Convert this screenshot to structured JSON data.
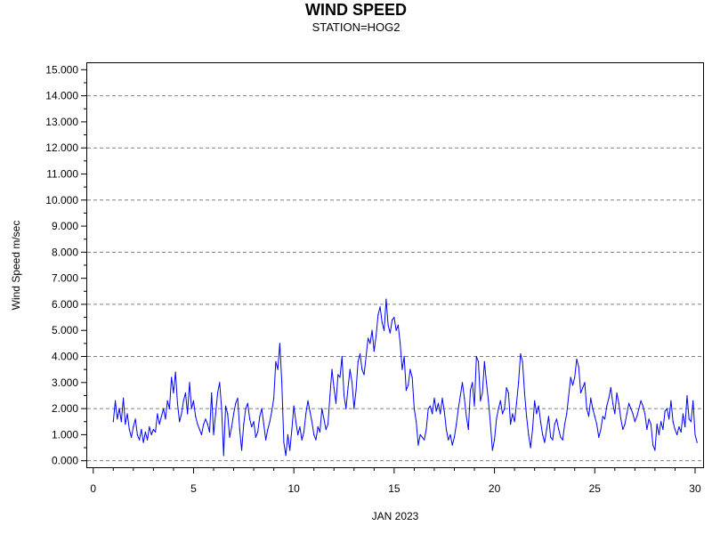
{
  "chart_data": {
    "type": "line",
    "title": "WIND SPEED",
    "subtitle": "STATION=HOG2",
    "xlabel": "JAN 2023",
    "ylabel": "Wind Speed m/sec",
    "xlim": [
      -0.3,
      30.4
    ],
    "ylim": [
      -0.25,
      15.25
    ],
    "x_ticks": [
      0,
      5,
      10,
      15,
      20,
      25,
      30
    ],
    "y_ticks": [
      "0.000",
      "1.000",
      "2.000",
      "3.000",
      "4.000",
      "5.000",
      "6.000",
      "7.000",
      "8.000",
      "9.000",
      "10.000",
      "11.000",
      "12.000",
      "13.000",
      "14.000",
      "15.000"
    ],
    "y_gridlines": [
      0,
      2,
      4,
      6,
      8,
      10,
      12,
      14
    ],
    "grid": "dashed horizontal at even values",
    "series": [
      {
        "color": "#0000ff",
        "points": [
          [
            1.0,
            1.5
          ],
          [
            1.1,
            2.3
          ],
          [
            1.2,
            1.6
          ],
          [
            1.3,
            2.0
          ],
          [
            1.4,
            1.5
          ],
          [
            1.5,
            2.4
          ],
          [
            1.6,
            1.4
          ],
          [
            1.7,
            1.8
          ],
          [
            1.8,
            1.2
          ],
          [
            1.9,
            0.9
          ],
          [
            2.0,
            1.3
          ],
          [
            2.1,
            1.6
          ],
          [
            2.2,
            1.0
          ],
          [
            2.3,
            0.8
          ],
          [
            2.4,
            1.2
          ],
          [
            2.5,
            0.7
          ],
          [
            2.6,
            1.1
          ],
          [
            2.7,
            0.8
          ],
          [
            2.8,
            1.3
          ],
          [
            2.9,
            1.0
          ],
          [
            3.0,
            1.2
          ],
          [
            3.1,
            1.1
          ],
          [
            3.2,
            1.8
          ],
          [
            3.3,
            1.4
          ],
          [
            3.4,
            1.7
          ],
          [
            3.5,
            2.0
          ],
          [
            3.6,
            1.6
          ],
          [
            3.7,
            2.3
          ],
          [
            3.8,
            2.0
          ],
          [
            3.9,
            3.2
          ],
          [
            4.0,
            2.6
          ],
          [
            4.1,
            3.4
          ],
          [
            4.2,
            2.2
          ],
          [
            4.3,
            1.5
          ],
          [
            4.4,
            1.8
          ],
          [
            4.5,
            2.3
          ],
          [
            4.6,
            2.6
          ],
          [
            4.7,
            1.8
          ],
          [
            4.8,
            3.0
          ],
          [
            4.9,
            2.0
          ],
          [
            5.0,
            2.3
          ],
          [
            5.1,
            1.7
          ],
          [
            5.2,
            1.4
          ],
          [
            5.3,
            1.2
          ],
          [
            5.4,
            1.0
          ],
          [
            5.5,
            1.4
          ],
          [
            5.6,
            1.6
          ],
          [
            5.7,
            1.4
          ],
          [
            5.8,
            1.1
          ],
          [
            5.9,
            2.6
          ],
          [
            6.0,
            1.0
          ],
          [
            6.1,
            1.8
          ],
          [
            6.2,
            2.6
          ],
          [
            6.3,
            3.0
          ],
          [
            6.4,
            2.0
          ],
          [
            6.5,
            0.2
          ],
          [
            6.6,
            2.1
          ],
          [
            6.7,
            1.8
          ],
          [
            6.8,
            0.9
          ],
          [
            6.9,
            1.3
          ],
          [
            7.0,
            1.8
          ],
          [
            7.1,
            2.2
          ],
          [
            7.2,
            2.4
          ],
          [
            7.3,
            1.2
          ],
          [
            7.4,
            0.4
          ],
          [
            7.5,
            1.4
          ],
          [
            7.6,
            2.0
          ],
          [
            7.7,
            2.2
          ],
          [
            7.8,
            1.6
          ],
          [
            7.9,
            1.3
          ],
          [
            8.0,
            1.5
          ],
          [
            8.1,
            0.9
          ],
          [
            8.2,
            1.1
          ],
          [
            8.3,
            1.7
          ],
          [
            8.4,
            2.0
          ],
          [
            8.5,
            1.4
          ],
          [
            8.6,
            0.8
          ],
          [
            8.7,
            1.2
          ],
          [
            8.8,
            1.5
          ],
          [
            8.9,
            1.9
          ],
          [
            9.0,
            2.4
          ],
          [
            9.1,
            3.8
          ],
          [
            9.2,
            3.5
          ],
          [
            9.3,
            4.5
          ],
          [
            9.4,
            3.0
          ],
          [
            9.5,
            0.7
          ],
          [
            9.6,
            0.2
          ],
          [
            9.7,
            1.0
          ],
          [
            9.8,
            0.4
          ],
          [
            9.9,
            1.2
          ],
          [
            10.0,
            2.1
          ],
          [
            10.1,
            1.5
          ],
          [
            10.2,
            1.0
          ],
          [
            10.3,
            1.3
          ],
          [
            10.4,
            0.8
          ],
          [
            10.5,
            1.1
          ],
          [
            10.6,
            1.8
          ],
          [
            10.7,
            2.3
          ],
          [
            10.8,
            1.9
          ],
          [
            10.9,
            1.5
          ],
          [
            11.0,
            1.0
          ],
          [
            11.1,
            0.8
          ],
          [
            11.2,
            1.3
          ],
          [
            11.3,
            1.1
          ],
          [
            11.4,
            2.0
          ],
          [
            11.5,
            1.6
          ],
          [
            11.6,
            1.2
          ],
          [
            11.7,
            1.4
          ],
          [
            11.8,
            2.5
          ],
          [
            11.9,
            3.5
          ],
          [
            12.0,
            2.8
          ],
          [
            12.1,
            2.2
          ],
          [
            12.2,
            3.3
          ],
          [
            12.3,
            3.2
          ],
          [
            12.4,
            4.0
          ],
          [
            12.5,
            2.5
          ],
          [
            12.6,
            2.0
          ],
          [
            12.7,
            2.8
          ],
          [
            12.8,
            3.5
          ],
          [
            12.9,
            3.0
          ],
          [
            13.0,
            2.0
          ],
          [
            13.1,
            2.7
          ],
          [
            13.2,
            3.8
          ],
          [
            13.3,
            4.1
          ],
          [
            13.4,
            3.5
          ],
          [
            13.5,
            3.3
          ],
          [
            13.6,
            4.0
          ],
          [
            13.7,
            4.7
          ],
          [
            13.8,
            4.5
          ],
          [
            13.9,
            5.0
          ],
          [
            14.0,
            4.2
          ],
          [
            14.1,
            4.8
          ],
          [
            14.2,
            5.6
          ],
          [
            14.3,
            5.9
          ],
          [
            14.4,
            5.3
          ],
          [
            14.5,
            5.0
          ],
          [
            14.6,
            6.2
          ],
          [
            14.7,
            5.2
          ],
          [
            14.8,
            4.9
          ],
          [
            14.9,
            5.4
          ],
          [
            15.0,
            5.5
          ],
          [
            15.1,
            5.0
          ],
          [
            15.2,
            5.2
          ],
          [
            15.3,
            4.5
          ],
          [
            15.4,
            3.5
          ],
          [
            15.5,
            4.0
          ],
          [
            15.6,
            2.7
          ],
          [
            15.7,
            2.9
          ],
          [
            15.8,
            3.5
          ],
          [
            15.9,
            3.2
          ],
          [
            16.0,
            2.0
          ],
          [
            16.1,
            1.5
          ],
          [
            16.2,
            0.6
          ],
          [
            16.3,
            1.0
          ],
          [
            16.4,
            0.9
          ],
          [
            16.5,
            0.8
          ],
          [
            16.6,
            1.2
          ],
          [
            16.7,
            2.0
          ],
          [
            16.8,
            2.1
          ],
          [
            16.9,
            1.8
          ],
          [
            17.0,
            2.4
          ],
          [
            17.1,
            1.9
          ],
          [
            17.2,
            2.2
          ],
          [
            17.3,
            1.8
          ],
          [
            17.4,
            2.4
          ],
          [
            17.5,
            1.9
          ],
          [
            17.6,
            1.2
          ],
          [
            17.7,
            0.8
          ],
          [
            17.8,
            1.0
          ],
          [
            17.9,
            0.6
          ],
          [
            18.0,
            0.9
          ],
          [
            18.1,
            1.4
          ],
          [
            18.2,
            2.0
          ],
          [
            18.3,
            2.5
          ],
          [
            18.4,
            3.0
          ],
          [
            18.5,
            2.4
          ],
          [
            18.6,
            1.7
          ],
          [
            18.7,
            1.2
          ],
          [
            18.8,
            2.7
          ],
          [
            18.9,
            3.0
          ],
          [
            19.0,
            2.1
          ],
          [
            19.1,
            4.0
          ],
          [
            19.2,
            3.8
          ],
          [
            19.3,
            2.3
          ],
          [
            19.4,
            2.6
          ],
          [
            19.5,
            3.8
          ],
          [
            19.6,
            3.0
          ],
          [
            19.7,
            2.3
          ],
          [
            19.8,
            1.4
          ],
          [
            19.9,
            0.4
          ],
          [
            20.0,
            0.8
          ],
          [
            20.1,
            1.6
          ],
          [
            20.2,
            2.0
          ],
          [
            20.3,
            2.3
          ],
          [
            20.4,
            1.8
          ],
          [
            20.5,
            2.0
          ],
          [
            20.6,
            2.8
          ],
          [
            20.7,
            2.6
          ],
          [
            20.8,
            1.4
          ],
          [
            20.9,
            1.8
          ],
          [
            21.0,
            1.5
          ],
          [
            21.1,
            2.2
          ],
          [
            21.2,
            3.0
          ],
          [
            21.3,
            4.1
          ],
          [
            21.4,
            3.8
          ],
          [
            21.5,
            2.6
          ],
          [
            21.6,
            1.7
          ],
          [
            21.7,
            1.0
          ],
          [
            21.8,
            0.5
          ],
          [
            21.9,
            1.2
          ],
          [
            22.0,
            2.3
          ],
          [
            22.1,
            1.8
          ],
          [
            22.2,
            2.1
          ],
          [
            22.3,
            1.5
          ],
          [
            22.4,
            1.0
          ],
          [
            22.5,
            0.7
          ],
          [
            22.6,
            1.2
          ],
          [
            22.7,
            1.7
          ],
          [
            22.8,
            0.9
          ],
          [
            22.9,
            0.8
          ],
          [
            23.0,
            1.4
          ],
          [
            23.1,
            1.6
          ],
          [
            23.2,
            1.2
          ],
          [
            23.3,
            0.9
          ],
          [
            23.4,
            0.8
          ],
          [
            23.5,
            1.4
          ],
          [
            23.6,
            1.8
          ],
          [
            23.7,
            2.5
          ],
          [
            23.8,
            3.2
          ],
          [
            23.9,
            2.9
          ],
          [
            24.0,
            3.2
          ],
          [
            24.1,
            3.9
          ],
          [
            24.2,
            3.6
          ],
          [
            24.3,
            2.6
          ],
          [
            24.4,
            2.8
          ],
          [
            24.5,
            3.0
          ],
          [
            24.6,
            2.0
          ],
          [
            24.7,
            1.7
          ],
          [
            24.8,
            2.4
          ],
          [
            24.9,
            2.0
          ],
          [
            25.0,
            1.7
          ],
          [
            25.1,
            1.4
          ],
          [
            25.2,
            0.9
          ],
          [
            25.3,
            1.2
          ],
          [
            25.4,
            1.7
          ],
          [
            25.5,
            1.6
          ],
          [
            25.6,
            2.1
          ],
          [
            25.7,
            2.4
          ],
          [
            25.8,
            2.8
          ],
          [
            25.9,
            2.2
          ],
          [
            26.0,
            1.8
          ],
          [
            26.1,
            2.6
          ],
          [
            26.2,
            2.2
          ],
          [
            26.3,
            1.6
          ],
          [
            26.4,
            1.2
          ],
          [
            26.5,
            1.4
          ],
          [
            26.6,
            1.8
          ],
          [
            26.7,
            2.2
          ],
          [
            26.8,
            2.0
          ],
          [
            26.9,
            1.8
          ],
          [
            27.0,
            1.5
          ],
          [
            27.1,
            1.7
          ],
          [
            27.2,
            2.0
          ],
          [
            27.3,
            2.3
          ],
          [
            27.4,
            2.1
          ],
          [
            27.5,
            1.8
          ],
          [
            27.6,
            1.2
          ],
          [
            27.7,
            1.6
          ],
          [
            27.8,
            1.4
          ],
          [
            27.9,
            0.6
          ],
          [
            28.0,
            0.4
          ],
          [
            28.1,
            1.4
          ],
          [
            28.2,
            1.0
          ],
          [
            28.3,
            1.5
          ],
          [
            28.4,
            1.2
          ],
          [
            28.5,
            1.9
          ],
          [
            28.6,
            2.0
          ],
          [
            28.7,
            1.6
          ],
          [
            28.8,
            2.3
          ],
          [
            28.9,
            1.5
          ],
          [
            29.0,
            1.2
          ],
          [
            29.1,
            1.0
          ],
          [
            29.2,
            1.3
          ],
          [
            29.3,
            1.1
          ],
          [
            29.4,
            1.8
          ],
          [
            29.5,
            1.3
          ],
          [
            29.6,
            2.5
          ],
          [
            29.7,
            1.6
          ],
          [
            29.8,
            1.5
          ],
          [
            29.9,
            2.3
          ],
          [
            30.0,
            1.0
          ],
          [
            30.1,
            0.7
          ]
        ]
      }
    ]
  }
}
